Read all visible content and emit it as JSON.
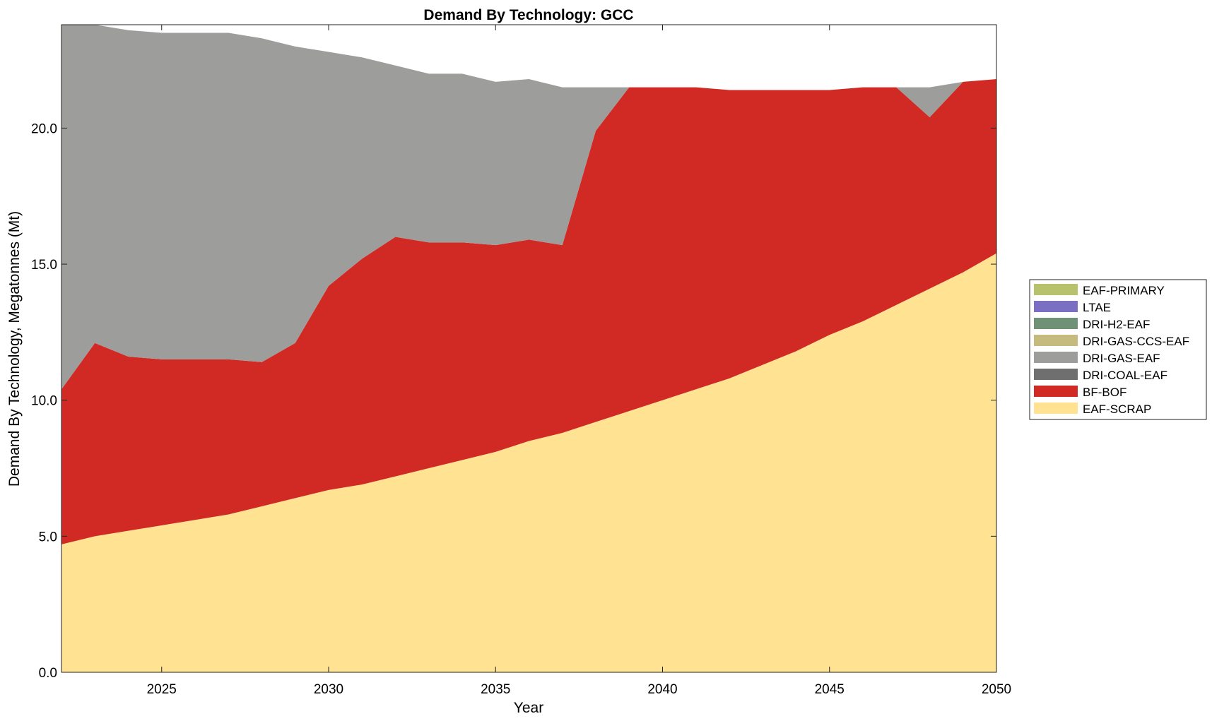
{
  "chart_data": {
    "type": "area",
    "stacked": true,
    "title": "Demand By Technology: GCC",
    "xlabel": "Year",
    "ylabel": "Demand By Technology, Megatonnes (Mt)",
    "xlim": [
      2022,
      2050
    ],
    "ylim": [
      0,
      23.8
    ],
    "xticks": [
      2025,
      2030,
      2035,
      2040,
      2045,
      2050
    ],
    "yticks": [
      0,
      5,
      10,
      15,
      20
    ],
    "ytick_labels": [
      "0.0",
      "5.0",
      "10.0",
      "15.0",
      "20.0"
    ],
    "legend_position": "right",
    "grid": false,
    "x": [
      2022,
      2023,
      2024,
      2025,
      2026,
      2027,
      2028,
      2029,
      2030,
      2031,
      2032,
      2033,
      2034,
      2035,
      2036,
      2037,
      2038,
      2039,
      2040,
      2041,
      2042,
      2043,
      2044,
      2045,
      2046,
      2047,
      2048,
      2049,
      2050
    ],
    "series": [
      {
        "name": "EAF-PRIMARY",
        "color": "#b8c16b",
        "values": [
          0,
          0,
          0,
          0,
          0,
          0,
          0,
          0,
          0,
          0,
          0,
          0,
          0,
          0,
          0,
          0,
          0,
          0,
          0,
          0,
          0,
          0,
          0,
          0,
          0,
          0,
          0,
          0,
          0
        ]
      },
      {
        "name": "LTAE",
        "color": "#7b6fc4",
        "values": [
          0,
          0,
          0,
          0,
          0,
          0,
          0,
          0,
          0,
          0,
          0,
          0,
          0,
          0,
          0,
          0,
          0,
          0,
          0,
          0,
          0,
          0,
          0,
          0,
          0,
          0,
          0,
          0,
          0
        ]
      },
      {
        "name": "DRI-H2-EAF",
        "color": "#6f9277",
        "values": [
          0,
          0,
          0,
          0,
          0,
          0,
          0,
          0,
          0,
          0,
          0,
          0,
          0,
          0,
          0,
          0,
          0,
          0,
          0,
          0,
          0,
          0,
          0,
          0,
          0,
          0,
          0,
          0,
          0
        ]
      },
      {
        "name": "DRI-GAS-CCS-EAF",
        "color": "#c5bb7f",
        "values": [
          0,
          0,
          0,
          0,
          0,
          0,
          0,
          0,
          0,
          0,
          0,
          0,
          0,
          0,
          0,
          0,
          0,
          0,
          0,
          0,
          0,
          0,
          0,
          0,
          0,
          0,
          0,
          0,
          0
        ]
      },
      {
        "name": "DRI-GAS-EAF",
        "color": "#9d9d9b",
        "values": [
          13.4,
          11.7,
          12.0,
          12.0,
          12.0,
          12.0,
          11.9,
          10.9,
          8.6,
          7.4,
          6.3,
          6.2,
          6.2,
          6.0,
          5.9,
          5.8,
          1.6,
          0,
          0,
          0,
          0,
          0,
          0,
          0,
          0,
          0,
          1.1,
          0,
          0
        ]
      },
      {
        "name": "DRI-COAL-EAF",
        "color": "#6f6f6f",
        "values": [
          0,
          0,
          0,
          0,
          0,
          0,
          0,
          0,
          0,
          0,
          0,
          0,
          0,
          0,
          0,
          0,
          0,
          0,
          0,
          0,
          0,
          0,
          0,
          0,
          0,
          0,
          0,
          0,
          0
        ]
      },
      {
        "name": "BF-BOF",
        "color": "#d12a24",
        "values": [
          5.7,
          7.1,
          6.4,
          6.1,
          5.9,
          5.7,
          5.3,
          5.7,
          7.5,
          8.3,
          8.8,
          8.3,
          8.0,
          7.6,
          7.4,
          6.9,
          10.7,
          11.9,
          11.5,
          11.1,
          10.6,
          10.1,
          9.6,
          9.0,
          8.6,
          8.0,
          6.3,
          7.0,
          6.4
        ]
      },
      {
        "name": "EAF-SCRAP",
        "color": "#ffe393",
        "values": [
          4.7,
          5.0,
          5.2,
          5.4,
          5.6,
          5.8,
          6.1,
          6.4,
          6.7,
          6.9,
          7.2,
          7.5,
          7.8,
          8.1,
          8.5,
          8.8,
          9.2,
          9.6,
          10.0,
          10.4,
          10.8,
          11.3,
          11.8,
          12.4,
          12.9,
          13.5,
          14.1,
          14.7,
          15.4
        ]
      }
    ]
  }
}
